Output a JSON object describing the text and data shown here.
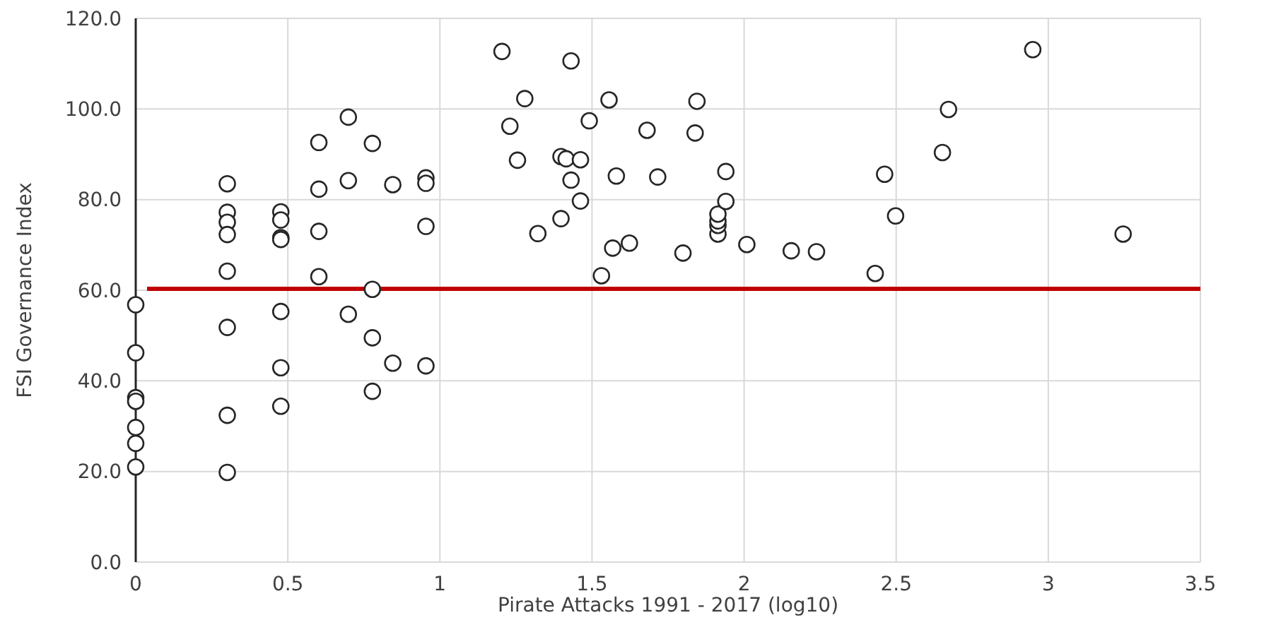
{
  "chart_data": {
    "type": "scatter",
    "xlabel": "Pirate Attacks 1991 - 2017 (log10)",
    "ylabel": "FSI Governance Index",
    "xlim": [
      0,
      3.5
    ],
    "xticks": [
      0,
      0.5,
      1,
      1.5,
      2,
      2.5,
      3,
      3.5
    ],
    "ylim": [
      0,
      120
    ],
    "yticks": [
      {
        "value": 0,
        "label": "0.0"
      },
      {
        "value": 20,
        "label": "20.0"
      },
      {
        "value": 40,
        "label": "40.0"
      },
      {
        "value": 60,
        "label": "60.0"
      },
      {
        "value": 80,
        "label": "80.0"
      },
      {
        "value": 100,
        "label": "100.0"
      },
      {
        "value": 120,
        "label": "120.0"
      }
    ],
    "grid": true,
    "marker": "circle",
    "ref_lines": [
      {
        "axis": "y",
        "value": 60.3,
        "color": "#c00000",
        "line_style": "solid"
      }
    ],
    "series": [
      {
        "color": "#262626",
        "x": [
          0,
          0,
          0,
          0,
          0,
          0,
          0,
          0.301,
          0.301,
          0.301,
          0.301,
          0.301,
          0.301,
          0.301,
          0.301,
          0.477,
          0.477,
          0.477,
          0.477,
          0.477,
          0.477,
          0.477,
          0.602,
          0.602,
          0.602,
          0.602,
          0.699,
          0.699,
          0.699,
          0.778,
          0.778,
          0.778,
          0.778,
          0.845,
          0.845,
          0.954,
          0.954,
          0.954,
          0.954,
          1.204,
          1.23,
          1.255,
          1.279,
          1.322,
          1.398,
          1.398,
          1.415,
          1.431,
          1.431,
          1.462,
          1.462,
          1.491,
          1.531,
          1.556,
          1.568,
          1.58,
          1.623,
          1.681,
          1.716,
          1.799,
          1.839,
          1.845,
          1.914,
          1.914,
          1.914,
          1.914,
          1.94,
          1.94,
          2.009,
          2.155,
          2.238,
          2.431,
          2.462,
          2.498,
          2.652,
          2.672,
          2.949,
          3.246
        ],
        "values": [
          56.8,
          46.2,
          36.3,
          35.5,
          29.7,
          26.2,
          21.0,
          83.5,
          77.2,
          75.0,
          72.3,
          64.2,
          51.8,
          32.4,
          19.8,
          77.3,
          75.5,
          71.6,
          71.2,
          55.3,
          42.9,
          34.4,
          92.6,
          82.3,
          73.0,
          63.0,
          98.2,
          84.2,
          54.7,
          92.4,
          60.2,
          49.5,
          37.7,
          83.3,
          43.9,
          84.8,
          83.6,
          74.1,
          43.3,
          112.7,
          96.2,
          88.7,
          102.3,
          72.5,
          89.5,
          75.8,
          89.0,
          110.6,
          84.3,
          88.8,
          79.7,
          97.4,
          63.2,
          102.0,
          69.3,
          85.2,
          70.4,
          95.3,
          85.0,
          68.2,
          94.7,
          101.7,
          72.4,
          74.3,
          75.3,
          76.8,
          86.2,
          79.6,
          70.1,
          68.7,
          68.5,
          63.7,
          85.6,
          76.4,
          90.4,
          99.9,
          113.1,
          72.4
        ]
      }
    ]
  }
}
